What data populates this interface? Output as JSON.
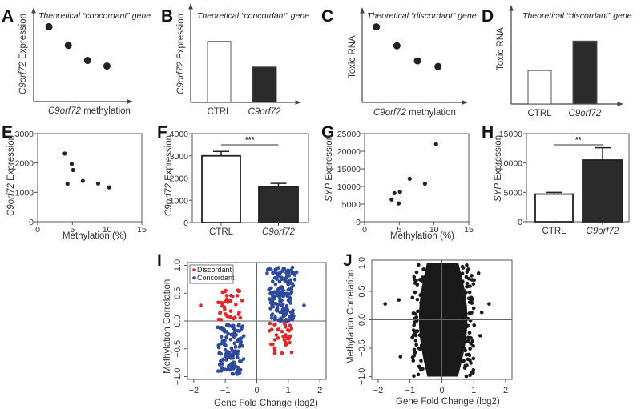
{
  "figure": {
    "colors": {
      "dot": "#222222",
      "dark_bar": "#2b2b2b",
      "discordant": "#e8262a",
      "concordant": "#2e4a9e",
      "axis": "#555555"
    }
  },
  "chart_data": [
    {
      "id": "A",
      "panel_label": "A",
      "type": "scatter",
      "title": "Theoretical “concordant” gene",
      "xlabel_italic": "C9orf72",
      "xlabel_rest": " methylation",
      "ylabel_italic": "C9orf72",
      "ylabel_rest": " Expression",
      "schematic": true,
      "x": [
        1,
        2,
        3,
        4
      ],
      "y": [
        4,
        3,
        2.2,
        1.9
      ],
      "xlim": [
        0,
        5
      ],
      "ylim": [
        0,
        5
      ]
    },
    {
      "id": "B",
      "panel_label": "B",
      "type": "bar",
      "title": "Theoretical “concordant” gene",
      "ylabel_italic": "C9orf72",
      "ylabel_rest": " Expression",
      "schematic": true,
      "categories": [
        "CTRL",
        "C9orf72"
      ],
      "category_italic": [
        false,
        true
      ],
      "values": [
        3.1,
        1.8
      ],
      "fill": [
        "white",
        "dark"
      ],
      "ylim": [
        0,
        5
      ]
    },
    {
      "id": "C",
      "panel_label": "C",
      "type": "scatter",
      "title": "Theoretical “discordant” gene",
      "xlabel_italic": "C9orf72",
      "xlabel_rest": " methylation",
      "ylabel_italic": "",
      "ylabel_rest": "Toxic RNA",
      "schematic": true,
      "x": [
        1,
        2,
        3,
        4
      ],
      "y": [
        4,
        3,
        2.2,
        1.9
      ],
      "xlim": [
        0,
        5
      ],
      "ylim": [
        0,
        5
      ]
    },
    {
      "id": "D",
      "panel_label": "D",
      "type": "bar",
      "title": "Theoretical “discordant” gene",
      "ylabel_italic": "",
      "ylabel_rest": "Toxic RNA",
      "schematic": true,
      "categories": [
        "CTRL",
        "C9orf72"
      ],
      "category_italic": [
        false,
        true
      ],
      "values": [
        1.7,
        3.2
      ],
      "fill": [
        "white",
        "dark"
      ],
      "ylim": [
        0,
        5
      ]
    },
    {
      "id": "E",
      "panel_label": "E",
      "type": "scatter",
      "title": "",
      "xlabel": "Methylation (%)",
      "ylabel_italic": "C9orf72",
      "ylabel_rest": " Expression",
      "x": [
        3.9,
        4.3,
        4.9,
        5.1,
        6.5,
        8.7,
        10.3
      ],
      "y": [
        2320,
        1290,
        1970,
        1760,
        1390,
        1300,
        1170
      ],
      "xlim": [
        0,
        15
      ],
      "ylim": [
        0,
        3000
      ],
      "xticks": [
        0,
        5,
        10,
        15
      ],
      "yticks": [
        0,
        1000,
        2000,
        3000
      ],
      "grid": false
    },
    {
      "id": "F",
      "panel_label": "F",
      "type": "bar",
      "title": "",
      "ylabel_italic": "C9orf72",
      "ylabel_rest": " Expression",
      "categories": [
        "CTRL",
        "C9orf72"
      ],
      "category_italic": [
        false,
        true
      ],
      "values": [
        3000,
        1600
      ],
      "errors": [
        200,
        160
      ],
      "fill": [
        "white",
        "dark"
      ],
      "ylim": [
        0,
        4000
      ],
      "yticks": [
        0,
        1000,
        2000,
        3000,
        4000
      ],
      "significance": "***"
    },
    {
      "id": "G",
      "panel_label": "G",
      "type": "scatter",
      "title": "",
      "xlabel": "Methylation (%)",
      "ylabel_italic": "SYP",
      "ylabel_rest": " Expression",
      "x": [
        3.9,
        4.3,
        4.9,
        5.1,
        6.5,
        8.7,
        10.3
      ],
      "y": [
        6300,
        8100,
        5200,
        8500,
        12200,
        10800,
        22000
      ],
      "xlim": [
        0,
        15
      ],
      "ylim": [
        0,
        25000
      ],
      "xticks": [
        0,
        5,
        10,
        15
      ],
      "yticks": [
        0,
        5000,
        10000,
        15000,
        20000,
        25000
      ],
      "grid": false
    },
    {
      "id": "H",
      "panel_label": "H",
      "type": "bar",
      "title": "",
      "ylabel_italic": "SYP",
      "ylabel_rest": " Expression",
      "categories": [
        "CTRL",
        "C9orf72"
      ],
      "category_italic": [
        false,
        true
      ],
      "values": [
        4700,
        10500
      ],
      "errors": [
        300,
        2100
      ],
      "fill": [
        "white",
        "dark"
      ],
      "ylim": [
        0,
        15000
      ],
      "yticks": [
        0,
        5000,
        10000,
        15000
      ],
      "significance": "**"
    },
    {
      "id": "I",
      "panel_label": "I",
      "type": "scatter",
      "title": "",
      "xlabel": "Gene Fold Change (log2)",
      "ylabel": "Methylation Correlation",
      "xlim": [
        -2.2,
        2.2
      ],
      "ylim": [
        -1.05,
        1.05
      ],
      "xticks": [
        -2,
        -1,
        0,
        1,
        2
      ],
      "xtick_labels": [
        "−2",
        "−1",
        "0",
        "1",
        "2"
      ],
      "yticks": [
        -1.0,
        -0.5,
        0.0,
        0.5,
        1.0
      ],
      "ytick_labels": [
        "−1.0",
        "−0.5",
        "0.0",
        "0.5",
        "1.0"
      ],
      "legend": {
        "position": "top-left",
        "entries": [
          "Discordant",
          "Concordant"
        ]
      },
      "series": [
        {
          "name": "Discordant",
          "color": "#e8262a",
          "clusters": [
            {
              "x_range": [
                -1.35,
                -0.35
              ],
              "y_range": [
                0.0,
                0.58
              ],
              "n": 38,
              "outliers": [
                [
                  -1.78,
                  0.28
                ]
              ]
            },
            {
              "x_range": [
                0.35,
                1.25
              ],
              "y_range": [
                -0.58,
                0.0
              ],
              "n": 40
            }
          ]
        },
        {
          "name": "Concordant",
          "color": "#2e4a9e",
          "clusters": [
            {
              "x_range": [
                -1.3,
                -0.35
              ],
              "y_range": [
                -0.96,
                -0.05
              ],
              "n": 130
            },
            {
              "x_range": [
                0.3,
                1.3
              ],
              "y_range": [
                0.0,
                0.97
              ],
              "n": 160,
              "outliers": [
                [
                  1.5,
                  0.28
                ]
              ]
            }
          ]
        }
      ],
      "reference_lines": {
        "x": 0,
        "y": 0
      }
    },
    {
      "id": "J",
      "panel_label": "J",
      "type": "scatter",
      "title": "",
      "xlabel": "Gene Fold Change (log2)",
      "ylabel": "Methylation Correlation",
      "xlim": [
        -2.2,
        2.2
      ],
      "ylim": [
        -1.05,
        1.05
      ],
      "xticks": [
        -2,
        -1,
        0,
        1,
        2
      ],
      "xtick_labels": [
        "−2",
        "−1",
        "0",
        "1",
        "2"
      ],
      "yticks": [
        -1.0,
        -0.5,
        0.0,
        0.5,
        1.0
      ],
      "ytick_labels": [
        "−1.0",
        "−0.5",
        "0.0",
        "0.5",
        "1.0"
      ],
      "description": "dense cloud of all genes, centred near 0 fold change, spanning correlation -1 to 1",
      "cloud": {
        "x_center": 0.1,
        "x_halfwidth": 0.7,
        "y_range": [
          -1.0,
          1.0
        ]
      },
      "outliers": [
        [
          -1.78,
          0.28
        ],
        [
          1.48,
          0.28
        ],
        [
          -1.35,
          0.35
        ],
        [
          -1.3,
          -0.65
        ],
        [
          1.15,
          0.82
        ],
        [
          1.2,
          -0.28
        ],
        [
          1.25,
          0.13
        ]
      ],
      "reference_lines": {
        "x": 0,
        "y": 0
      }
    }
  ]
}
